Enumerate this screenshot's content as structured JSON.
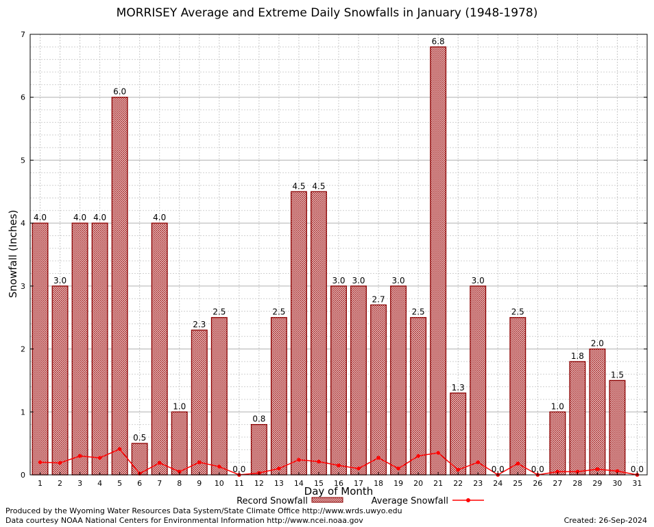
{
  "chart_data": {
    "type": "bar",
    "title": "MORRISEY Average and Extreme Daily Snowfalls in January (1948-1978)",
    "xlabel": "Day of Month",
    "ylabel": "Snowfall (Inches)",
    "ylim": [
      0,
      7
    ],
    "yticks": [
      0,
      1,
      2,
      3,
      4,
      5,
      6,
      7
    ],
    "grid": true,
    "legend_position": "bottom",
    "categories": [
      "1",
      "2",
      "3",
      "4",
      "5",
      "6",
      "7",
      "8",
      "9",
      "10",
      "11",
      "12",
      "13",
      "14",
      "15",
      "16",
      "17",
      "18",
      "19",
      "20",
      "21",
      "22",
      "23",
      "24",
      "25",
      "26",
      "27",
      "28",
      "29",
      "30",
      "31"
    ],
    "series": [
      {
        "name": "Record Snowfall",
        "kind": "bar",
        "color": "#8b0000",
        "values": [
          4.0,
          3.0,
          4.0,
          4.0,
          6.0,
          0.5,
          4.0,
          1.0,
          2.3,
          2.5,
          0.0,
          0.8,
          2.5,
          4.5,
          4.5,
          3.0,
          3.0,
          2.7,
          3.0,
          2.5,
          6.8,
          1.3,
          3.0,
          0.0,
          2.5,
          0.0,
          1.0,
          1.8,
          2.0,
          1.5,
          0.0
        ],
        "labels": [
          "4.0",
          "3.0",
          "4.0",
          "4.0",
          "6.0",
          "0.5",
          "4.0",
          "1.0",
          "2.3",
          "2.5",
          "0.0",
          "0.8",
          "2.5",
          "4.5",
          "4.5",
          "3.0",
          "3.0",
          "2.7",
          "3.0",
          "2.5",
          "6.8",
          "1.3",
          "3.0",
          "0.0",
          "2.5",
          "0.0",
          "1.0",
          "1.8",
          "2.0",
          "1.5",
          "0.0"
        ]
      },
      {
        "name": "Average Snowfall",
        "kind": "line",
        "color": "#ff0000",
        "values": [
          0.2,
          0.19,
          0.3,
          0.27,
          0.41,
          0.02,
          0.19,
          0.05,
          0.2,
          0.13,
          0.0,
          0.03,
          0.1,
          0.24,
          0.21,
          0.15,
          0.1,
          0.27,
          0.1,
          0.3,
          0.35,
          0.08,
          0.2,
          0.0,
          0.18,
          0.0,
          0.05,
          0.05,
          0.09,
          0.06,
          0.0
        ]
      }
    ]
  },
  "footer": {
    "produced_by": "Produced by the Wyoming Water Resources Data System/State Climate Office http://www.wrds.uwyo.edu",
    "courtesy": "Data courtesy NOAA National Centers for Environmental Information http://www.ncei.noaa.gov",
    "created": "Created: 26-Sep-2024"
  }
}
